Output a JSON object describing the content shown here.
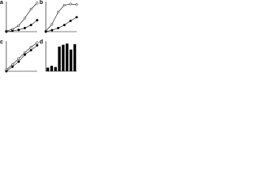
{
  "chart_data": [
    {
      "type": "line",
      "panel": "a",
      "x": [
        0,
        1,
        2,
        3,
        4,
        5
      ],
      "xlim": [
        0,
        5
      ],
      "ylim": [
        0,
        100
      ],
      "series": [
        {
          "color": "#000000",
          "marker_fill": "#ffffff",
          "values": [
            2,
            8,
            20,
            45,
            75,
            95
          ]
        },
        {
          "color": "#000000",
          "marker_fill": "#000000",
          "values": [
            0,
            3,
            6,
            12,
            22,
            38
          ]
        }
      ]
    },
    {
      "type": "line",
      "panel": "b",
      "x": [
        0,
        1,
        2,
        3,
        4,
        5
      ],
      "xlim": [
        0,
        5
      ],
      "ylim": [
        0,
        100
      ],
      "series": [
        {
          "color": "#000000",
          "marker_fill": "#ffffff",
          "values": [
            2,
            25,
            65,
            88,
            92,
            90
          ]
        },
        {
          "color": "#000000",
          "marker_fill": "#000000",
          "values": [
            0,
            5,
            12,
            22,
            36,
            48
          ]
        }
      ]
    },
    {
      "type": "line",
      "panel": "c",
      "x": [
        0,
        1,
        2,
        3,
        4,
        5
      ],
      "xlim": [
        0,
        5
      ],
      "ylim": [
        0,
        100
      ],
      "series": [
        {
          "color": "#000000",
          "marker_fill": "#ffffff",
          "values": [
            5,
            22,
            42,
            62,
            80,
            95
          ]
        },
        {
          "color": "#000000",
          "marker_fill": "#000000",
          "values": [
            0,
            15,
            32,
            55,
            70,
            86
          ]
        }
      ]
    },
    {
      "type": "bar",
      "panel": "d",
      "categories": [
        null,
        null,
        null,
        null,
        null,
        null,
        null,
        null
      ],
      "ylim": [
        0,
        100
      ],
      "color": "#000000",
      "values": [
        12,
        18,
        14,
        82,
        88,
        92,
        72,
        90
      ]
    }
  ]
}
